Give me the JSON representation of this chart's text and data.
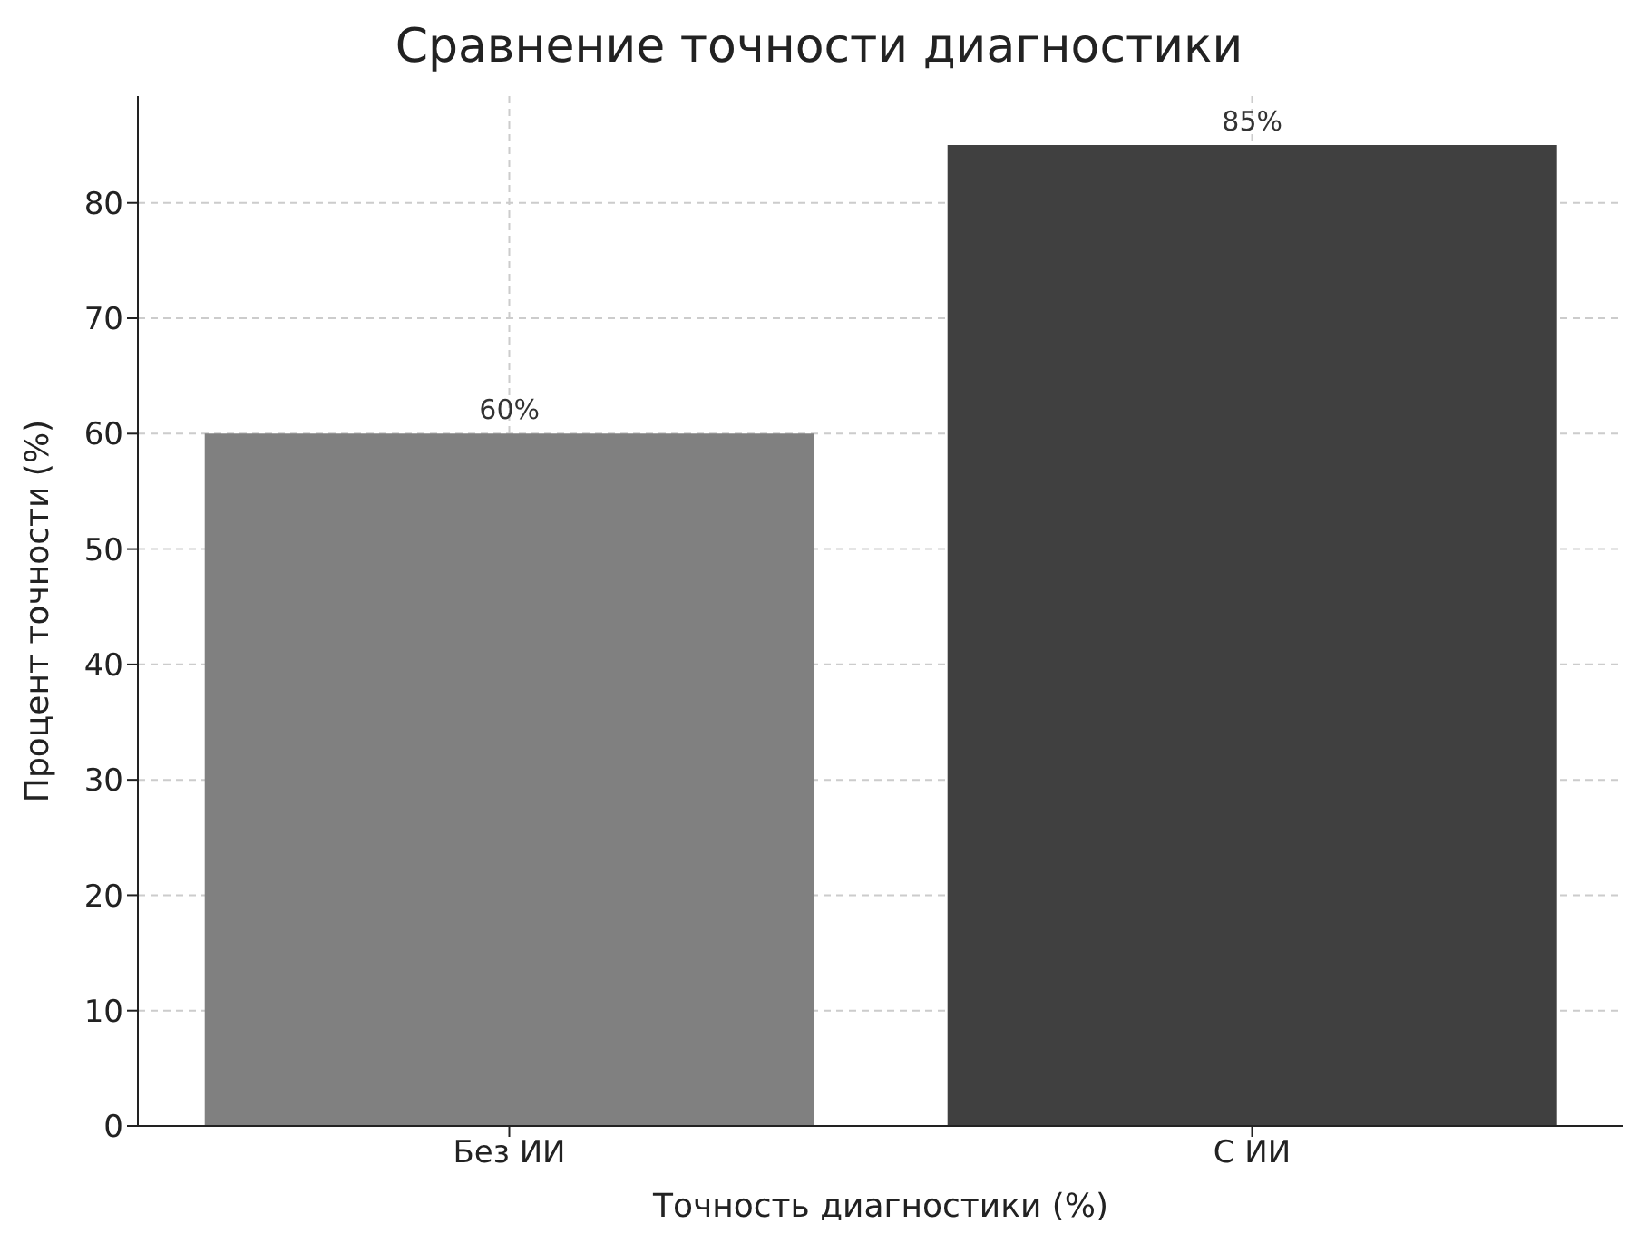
{
  "chart_data": {
    "type": "bar",
    "title": "Сравнение точности диагностики",
    "xlabel": "Точность диагностики (%)",
    "ylabel": "Процент точности (%)",
    "categories": [
      "Без ИИ",
      "С ИИ"
    ],
    "values": [
      60,
      85
    ],
    "colors": [
      "#808080",
      "#404040"
    ],
    "value_labels": [
      "60%",
      "85%"
    ],
    "ylim": [
      0,
      89.25
    ],
    "yticks": [
      0,
      10,
      20,
      30,
      40,
      50,
      60,
      70,
      80
    ],
    "grid": true
  }
}
